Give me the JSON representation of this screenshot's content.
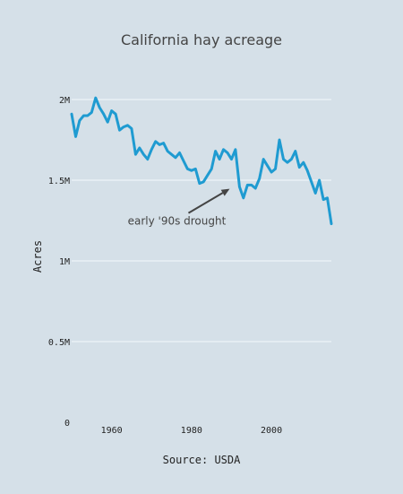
{
  "chart_data": {
    "type": "line",
    "title": "California hay acreage",
    "xlabel": "Source: USDA",
    "ylabel": "Acres",
    "xlim": [
      1950,
      2015
    ],
    "ylim": [
      0,
      2000000
    ],
    "x_ticks": [
      {
        "value": 1960,
        "label": "1960"
      },
      {
        "value": 1980,
        "label": "1980"
      },
      {
        "value": 2000,
        "label": "2000"
      }
    ],
    "y_ticks": [
      {
        "value": 0,
        "label": "0"
      },
      {
        "value": 500000,
        "label": "0.5M"
      },
      {
        "value": 1000000,
        "label": "1M"
      },
      {
        "value": 1500000,
        "label": "1.5M"
      },
      {
        "value": 2000000,
        "label": "2M"
      }
    ],
    "grid": true,
    "line_color": "#1f9bd1",
    "annotation": {
      "text": "early '90s drought",
      "x": 1990,
      "y": 1430000
    },
    "series": [
      {
        "x": [
          1950,
          1951,
          1952,
          1953,
          1954,
          1955,
          1956,
          1957,
          1958,
          1959,
          1960,
          1961,
          1962,
          1963,
          1964,
          1965,
          1966,
          1967,
          1968,
          1969,
          1970,
          1971,
          1972,
          1973,
          1974,
          1975,
          1976,
          1977,
          1978,
          1979,
          1980,
          1981,
          1982,
          1983,
          1984,
          1985,
          1986,
          1987,
          1988,
          1989,
          1990,
          1991,
          1992,
          1993,
          1994,
          1995,
          1996,
          1997,
          1998,
          1999,
          2000,
          2001,
          2002,
          2003,
          2004,
          2005,
          2006,
          2007,
          2008,
          2009,
          2010,
          2011,
          2012,
          2013,
          2014,
          2015
        ],
        "values": [
          1910000,
          1770000,
          1870000,
          1900000,
          1900000,
          1920000,
          2010000,
          1950000,
          1910000,
          1860000,
          1930000,
          1910000,
          1810000,
          1830000,
          1840000,
          1820000,
          1660000,
          1700000,
          1660000,
          1630000,
          1690000,
          1740000,
          1720000,
          1730000,
          1680000,
          1660000,
          1640000,
          1670000,
          1620000,
          1570000,
          1560000,
          1570000,
          1480000,
          1490000,
          1530000,
          1570000,
          1680000,
          1630000,
          1690000,
          1670000,
          1630000,
          1690000,
          1460000,
          1390000,
          1470000,
          1470000,
          1450000,
          1510000,
          1630000,
          1590000,
          1550000,
          1570000,
          1750000,
          1630000,
          1610000,
          1630000,
          1680000,
          1580000,
          1610000,
          1560000,
          1490000,
          1420000,
          1500000,
          1380000,
          1390000,
          1230000
        ]
      }
    ]
  }
}
